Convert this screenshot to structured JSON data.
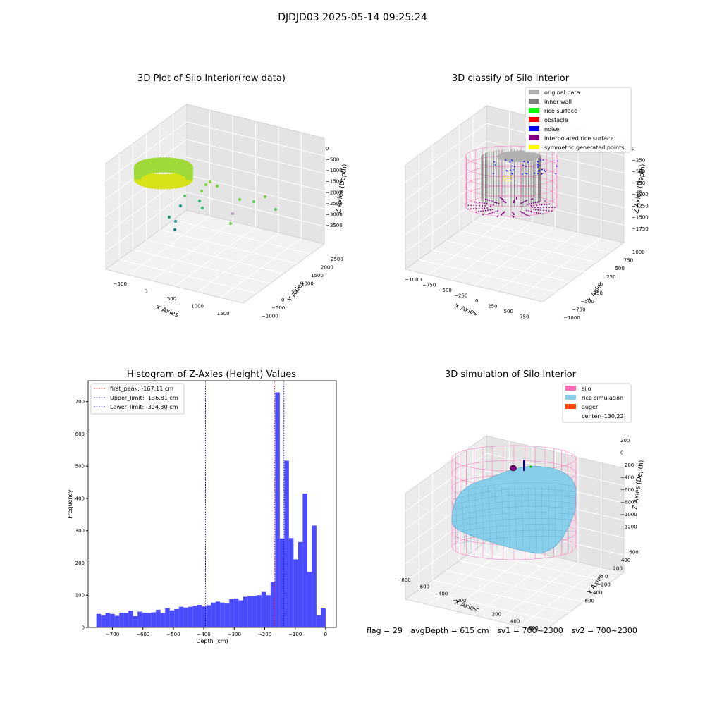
{
  "figure": {
    "suptitle": "DJDJD03 2025-05-14 09:25:24"
  },
  "status": {
    "flag": "flag = 29",
    "avg_depth": "avgDepth = 615 cm",
    "sv1": "sv1 = 700~2300",
    "sv2": "sv2 = 700~2300"
  },
  "chart_data": [
    {
      "type": "scatter",
      "title": "3D Plot of Silo Interior(row data)",
      "xlabel": "X Axies",
      "ylabel": "Y Axies",
      "zlabel": "Z Axies (Depth)",
      "x_ticks": [
        -500,
        0,
        500,
        1000,
        1500
      ],
      "y_ticks": [
        -1000,
        -500,
        0,
        500,
        1000,
        1500,
        2000,
        2500
      ],
      "z_ticks": [
        0,
        -500,
        -1000,
        -1500,
        -2000,
        -2500,
        -3000,
        -3500
      ],
      "colormap": "viridis",
      "points": [
        {
          "x": 1000,
          "y": 2500,
          "z": -2400
        },
        {
          "x": 1100,
          "y": 2300,
          "z": -2300
        },
        {
          "x": 1300,
          "y": 2100,
          "z": -2100
        },
        {
          "x": 1550,
          "y": 1900,
          "z": -2400
        },
        {
          "x": 1350,
          "y": 1600,
          "z": -2700
        },
        {
          "x": 800,
          "y": 1800,
          "z": -2100
        },
        {
          "x": 700,
          "y": 1300,
          "z": -2600
        },
        {
          "x": 200,
          "y": 1200,
          "z": -2900
        },
        {
          "x": -200,
          "y": 1000,
          "z": -3200
        },
        {
          "x": 0,
          "y": 900,
          "z": -2900
        },
        {
          "x": 400,
          "y": 700,
          "z": -2600
        }
      ]
    },
    {
      "type": "scatter",
      "title": "3D classify of Silo Interior",
      "xlabel": "X Axies",
      "ylabel": "Y Axies",
      "zlabel": "Z Axies (Depth)",
      "x_ticks": [
        -1000,
        -750,
        -500,
        -250,
        0,
        250,
        500,
        750
      ],
      "y_ticks": [
        -1000,
        -750,
        -500,
        -250,
        0,
        250,
        500,
        750,
        1000
      ],
      "z_ticks": [
        0,
        -250,
        -500,
        -750,
        -1000,
        -1250,
        -1500,
        -1750
      ],
      "legend_position": "upper-right",
      "legend": [
        {
          "label": "original data",
          "color": "#b0b0b0"
        },
        {
          "label": "inner wall",
          "color": "#808080"
        },
        {
          "label": "rice surface",
          "color": "#00ff00"
        },
        {
          "label": "obstacle",
          "color": "#ff0000"
        },
        {
          "label": "noise",
          "color": "#0000ff"
        },
        {
          "label": "interpolated rice surface",
          "color": "#800080"
        },
        {
          "label": "symmetric generated points",
          "color": "#ffff00"
        }
      ],
      "wireframe_color": "#ff69b4"
    },
    {
      "type": "bar",
      "title": "Histogram of Z-Axies (Height) Values",
      "xlabel": "Depth (cm)",
      "ylabel": "Frequency",
      "xlim": [
        -780,
        35
      ],
      "ylim": [
        0,
        765
      ],
      "x_ticks": [
        -700,
        -600,
        -500,
        -400,
        -300,
        -200,
        -100,
        0
      ],
      "y_ticks": [
        0,
        100,
        200,
        300,
        400,
        500,
        600,
        700
      ],
      "bar_color": "#4a4aff",
      "bin_width": 15.06,
      "bin_start": -753.0,
      "counts": [
        42,
        37,
        45,
        42,
        36,
        46,
        45,
        52,
        35,
        49,
        46,
        45,
        47,
        55,
        45,
        60,
        53,
        57,
        64,
        62,
        64,
        67,
        70,
        65,
        69,
        77,
        80,
        77,
        74,
        88,
        90,
        84,
        95,
        98,
        98,
        100,
        110,
        100,
        140,
        729,
        276,
        517,
        277,
        211,
        265,
        415,
        172,
        316,
        38,
        59
      ],
      "vlines": [
        {
          "label": "first_peak: -167.11 cm",
          "x": -167.11,
          "color": "#ff0000"
        },
        {
          "label": "Upper_limit: -136.81 cm",
          "x": -136.81,
          "color": "#0000aa"
        },
        {
          "label": "Lower_limit: -394.30 cm",
          "x": -394.3,
          "color": "#0000aa"
        }
      ],
      "legend_position": "upper-left"
    },
    {
      "type": "area",
      "title": "3D simulation of Silo Interior",
      "xlabel": "X Axies",
      "ylabel": "Y Axies",
      "zlabel": "Z Axies (Depth)",
      "x_ticks": [
        -800,
        -600,
        -400,
        -200,
        0,
        200,
        400,
        600
      ],
      "y_ticks": [
        -600,
        -400,
        -200,
        0,
        200,
        400,
        600
      ],
      "z_ticks": [
        200,
        0,
        -200,
        -400,
        -600,
        -800,
        -1000,
        -1200
      ],
      "legend_position": "upper-right",
      "legend": [
        {
          "label": "silo",
          "color": "#ff69b4"
        },
        {
          "label": "rice simulation",
          "color": "#87ceeb"
        },
        {
          "label": "auger",
          "color": "#ff4500"
        },
        {
          "label": "center(-130,22)",
          "color": ""
        }
      ]
    }
  ]
}
